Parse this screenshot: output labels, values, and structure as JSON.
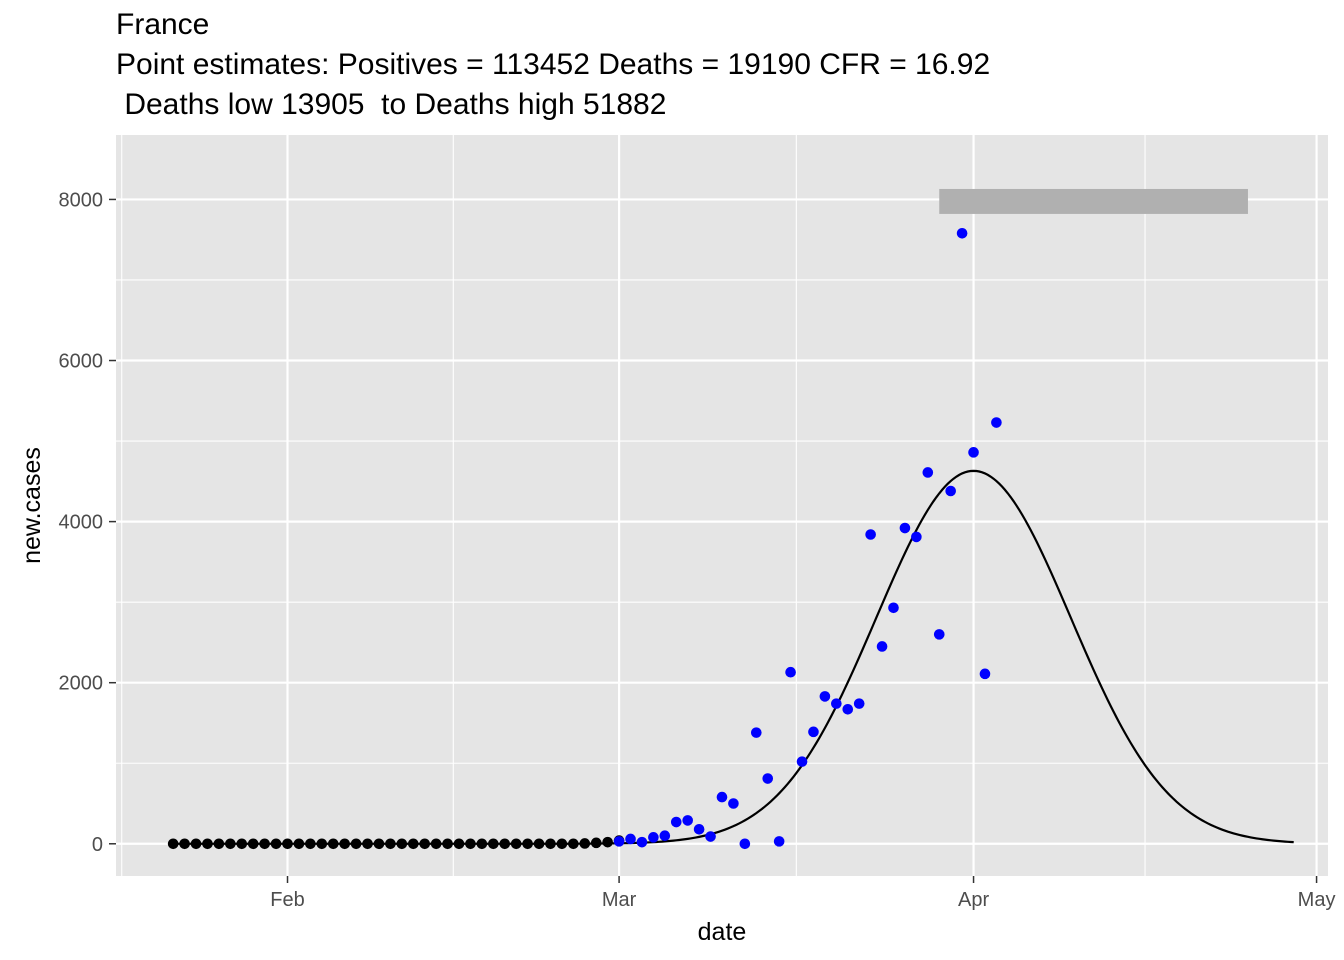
{
  "title": {
    "line1": "France",
    "line2": "Point estimates: Positives = 113452 Deaths = 19190 CFR = 16.92",
    "line3": " Deaths low 13905  to Deaths high 51882"
  },
  "colors": {
    "panel": "#e5e5e5",
    "grid_major": "#ffffff",
    "early_points": "#000000",
    "observed_points": "#0000ff",
    "fit_line": "#000000",
    "range_bar": "#b0b0b0"
  },
  "chart_data": {
    "type": "scatter",
    "xlabel": "date",
    "ylabel": "new.cases",
    "x_ticks": [
      {
        "date": "2020-02-01",
        "label": "Feb"
      },
      {
        "date": "2020-03-01",
        "label": "Mar"
      },
      {
        "date": "2020-04-01",
        "label": "Apr"
      },
      {
        "date": "2020-05-01",
        "label": "May"
      }
    ],
    "y_ticks": [
      0,
      2000,
      4000,
      6000,
      8000
    ],
    "xlim": [
      "2020-01-17",
      "2020-05-02"
    ],
    "ylim": [
      -400,
      8800
    ],
    "grid": true,
    "series": [
      {
        "kind": "points",
        "color": "#000000",
        "start_date": "2020-01-22",
        "values": [
          0,
          0,
          0,
          0,
          0,
          0,
          0,
          0,
          0,
          0,
          0,
          0,
          0,
          0,
          0,
          0,
          0,
          0,
          0,
          0,
          0,
          0,
          0,
          0,
          0,
          0,
          0,
          0,
          0,
          0,
          0,
          0,
          0,
          0,
          0,
          0,
          4,
          12,
          20,
          40
        ]
      },
      {
        "kind": "points",
        "color": "#0000ff",
        "start_date": "2020-03-01",
        "values": [
          30,
          60,
          20,
          80,
          100,
          270,
          290,
          180,
          90,
          580,
          500,
          0,
          1380,
          810,
          30,
          2130,
          1020,
          1390,
          1830,
          1740,
          1670,
          1740,
          3840,
          2450,
          2930,
          3920,
          3810,
          4610,
          2600,
          4380,
          7580,
          4860,
          2110,
          5230
        ]
      },
      {
        "kind": "line",
        "color": "#000000",
        "peak_date": "2020-04-01",
        "peak_value": 4630,
        "sd_days": 8.5,
        "start_date": "2020-01-22",
        "end_date": "2020-04-29"
      },
      {
        "kind": "range",
        "color": "#b0b0b0",
        "start_date": "2020-03-29",
        "end_date": "2020-04-25",
        "y_low": 7820,
        "y_high": 8130
      }
    ]
  }
}
